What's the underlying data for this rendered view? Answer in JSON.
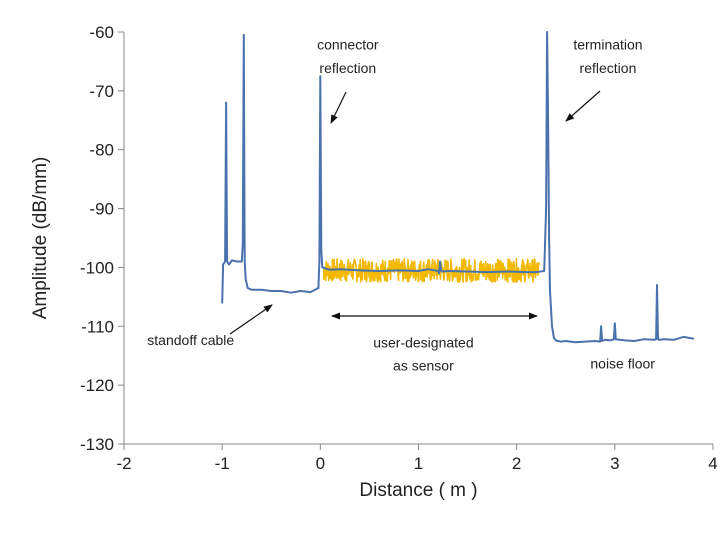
{
  "chart_data": {
    "type": "line",
    "title": "",
    "xlabel": "Distance ( m )",
    "ylabel": "Amplitude (dB/mm)",
    "xlim": [
      -2,
      4
    ],
    "ylim": [
      -130,
      -60
    ],
    "xticks": [
      "-2",
      "-1",
      "0",
      "1",
      "2",
      "3",
      "4"
    ],
    "yticks": [
      "-60",
      "-70",
      "-80",
      "-90",
      "-100",
      "-110",
      "-120",
      "-130"
    ],
    "grid": false,
    "legend": "none",
    "series": [
      {
        "color": "#4a73ad",
        "x": [
          -1.0,
          -0.99,
          -0.97,
          -0.96,
          -0.95,
          -0.93,
          -0.9,
          -0.85,
          -0.8,
          -0.79,
          -0.78,
          -0.77,
          -0.76,
          -0.74,
          -0.7,
          -0.6,
          -0.5,
          -0.4,
          -0.3,
          -0.2,
          -0.1,
          -0.02,
          -0.01,
          0.0,
          0.01,
          0.02,
          0.03,
          0.05,
          0.1,
          0.2,
          0.4,
          0.6,
          0.8,
          1.0,
          1.1,
          1.2,
          1.21,
          1.22,
          1.23,
          1.24,
          1.3,
          1.5,
          1.7,
          1.9,
          2.1,
          2.2,
          2.28,
          2.3,
          2.31,
          2.32,
          2.33,
          2.34,
          2.36,
          2.38,
          2.4,
          2.45,
          2.5,
          2.6,
          2.7,
          2.8,
          2.85,
          2.86,
          2.87,
          2.9,
          2.95,
          2.99,
          3.0,
          3.01,
          3.05,
          3.1,
          3.2,
          3.3,
          3.4,
          3.42,
          3.43,
          3.44,
          3.45,
          3.5,
          3.6,
          3.7,
          3.8
        ],
        "y": [
          -106,
          -99.5,
          -99,
          -72,
          -99,
          -99.5,
          -98.8,
          -99,
          -99,
          -96,
          -60.5,
          -99,
          -102,
          -103.5,
          -103.8,
          -103.8,
          -104,
          -104,
          -104.3,
          -104,
          -104.2,
          -103.5,
          -99,
          -67.5,
          -97,
          -100,
          -100,
          -100.2,
          -100.4,
          -100.3,
          -100.5,
          -100.6,
          -100.5,
          -100.6,
          -100.3,
          -100.6,
          -101,
          -99,
          -100.5,
          -100.7,
          -100.6,
          -100.7,
          -100.8,
          -100.7,
          -100.8,
          -100.8,
          -100.6,
          -90,
          -60,
          -75,
          -95,
          -104,
          -110,
          -112,
          -112.4,
          -112.6,
          -112.5,
          -112.7,
          -112.6,
          -112.5,
          -112.6,
          -110,
          -112.5,
          -112.3,
          -112.4,
          -112.2,
          -109.5,
          -112.2,
          -112.3,
          -112.4,
          -112.5,
          -112.2,
          -112.3,
          -112.2,
          -103,
          -112.2,
          -112.3,
          -112.2,
          -112.3,
          -111.8,
          -112.1
        ]
      },
      {
        "color": "#f2b900",
        "x": [
          0.03,
          2.23
        ],
        "y_mean": -100.6,
        "y_range": [
          -102.5,
          -98.5
        ]
      }
    ],
    "annotations": [
      {
        "text": "connector",
        "x": 0.28,
        "y": -63
      },
      {
        "text": "reflection",
        "x": 0.28,
        "y": -67
      },
      {
        "text": "termination",
        "x": 2.93,
        "y": -63
      },
      {
        "text": "reflection",
        "x": 2.93,
        "y": -67
      },
      {
        "text": "standoff cable",
        "x": -1.32,
        "y": -113.2
      },
      {
        "text": "user-designated",
        "x": 1.05,
        "y": -113.6
      },
      {
        "text": "as sensor",
        "x": 1.05,
        "y": -117.5
      },
      {
        "text": "noise floor",
        "x": 3.08,
        "y": -117.2
      }
    ]
  }
}
